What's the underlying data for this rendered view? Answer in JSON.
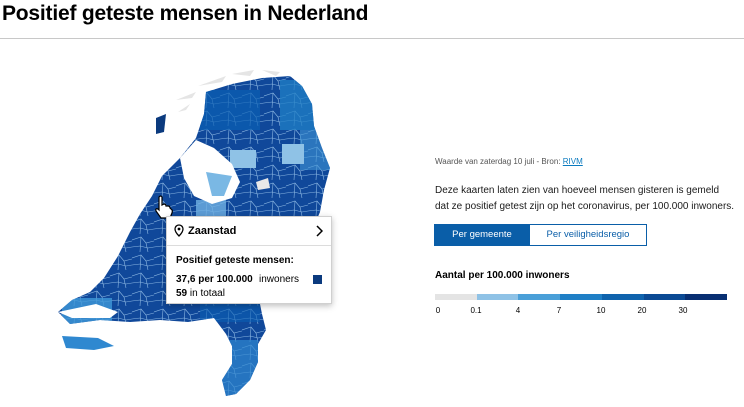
{
  "header": {
    "title": "Positief geteste mensen in Nederland"
  },
  "tooltip": {
    "place": "Zaanstad",
    "heading": "Positief geteste mensen:",
    "rate": "37,6 per 100.000",
    "rate_unit": "inwoners",
    "total_number": "59",
    "total_suffix": "in totaal"
  },
  "info": {
    "source_prefix": "Waarde van zaterdag 10 juli - Bron:",
    "source_link": "RIVM",
    "description": "Deze kaarten laten zien van hoeveel mensen gisteren is gemeld dat ze positief getest zijn op het coronavirus, per 100.000 inwoners."
  },
  "toggle": {
    "active": "Per gemeente",
    "inactive": "Per veiligheidsregio"
  },
  "legend": {
    "title": "Aantal per 100.000 inwoners",
    "ticks": [
      "0",
      "0.1",
      "4",
      "7",
      "10",
      "20",
      "30"
    ],
    "colors": [
      "#e4e4e4",
      "#8fc2e6",
      "#4a9fd8",
      "#1f7fc6",
      "#0f63ad",
      "#0b4a94",
      "#082f72"
    ]
  }
}
